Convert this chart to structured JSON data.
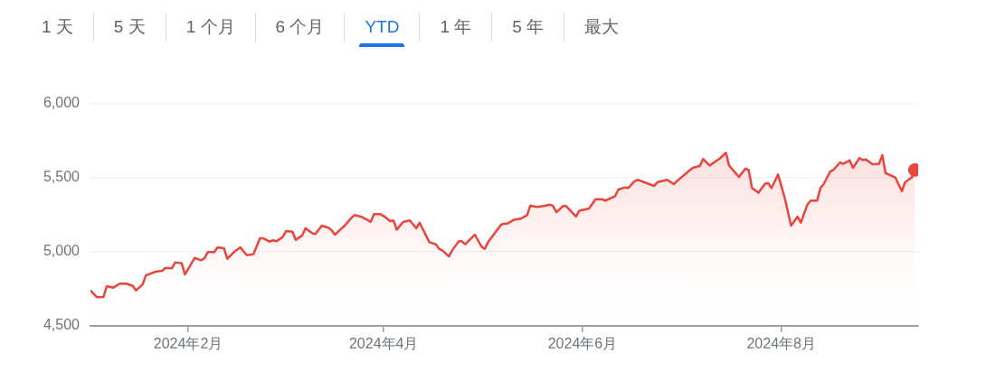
{
  "chart_data": {
    "type": "area",
    "annotations": [
      "1 天",
      "5 天",
      "1 个月",
      "6 个月",
      "YTD",
      "1 年",
      "5 年",
      "最大"
    ],
    "xlim": [
      "2024-01-02",
      "2024-09-12"
    ],
    "xticks": [
      {
        "value": "2024-02-01",
        "label": "2024年2月"
      },
      {
        "value": "2024-04-01",
        "label": "2024年4月"
      },
      {
        "value": "2024-06-01",
        "label": "2024年6月"
      },
      {
        "value": "2024-08-01",
        "label": "2024年8月"
      }
    ],
    "ylim": [
      4500,
      6000
    ],
    "yticks": [
      {
        "value": 4500,
        "label": "4,500"
      },
      {
        "value": 5000,
        "label": "5,000"
      },
      {
        "value": 5500,
        "label": "5,500"
      },
      {
        "value": 6000,
        "label": "6,000"
      }
    ],
    "grid": "y",
    "series": [
      {
        "type": "area",
        "color": "#e8453c",
        "x": [
          "2024-01-02",
          "2024-01-04",
          "2024-01-06",
          "2024-01-07",
          "2024-01-09",
          "2024-01-11",
          "2024-01-13",
          "2024-01-15",
          "2024-01-16",
          "2024-01-18",
          "2024-01-19",
          "2024-01-22",
          "2024-01-24",
          "2024-01-25",
          "2024-01-27",
          "2024-01-28",
          "2024-01-30",
          "2024-01-31",
          "2024-02-03",
          "2024-02-05",
          "2024-02-06",
          "2024-02-07",
          "2024-02-09",
          "2024-02-10",
          "2024-02-12",
          "2024-02-13",
          "2024-02-15",
          "2024-02-17",
          "2024-02-19",
          "2024-02-21",
          "2024-02-23",
          "2024-02-24",
          "2024-02-26",
          "2024-02-27",
          "2024-02-28",
          "2024-03-01",
          "2024-03-02",
          "2024-03-04",
          "2024-03-05",
          "2024-03-07",
          "2024-03-08",
          "2024-03-10",
          "2024-03-11",
          "2024-03-13",
          "2024-03-15",
          "2024-03-16",
          "2024-03-17",
          "2024-03-20",
          "2024-03-22",
          "2024-03-23",
          "2024-03-25",
          "2024-03-28",
          "2024-03-29",
          "2024-03-31",
          "2024-04-01",
          "2024-04-03",
          "2024-04-04",
          "2024-04-05",
          "2024-04-07",
          "2024-04-09",
          "2024-04-11",
          "2024-04-12",
          "2024-04-15",
          "2024-04-17",
          "2024-04-18",
          "2024-04-19",
          "2024-04-21",
          "2024-04-22",
          "2024-04-24",
          "2024-04-25",
          "2024-04-26",
          "2024-04-28",
          "2024-04-29",
          "2024-05-01",
          "2024-05-02",
          "2024-05-03",
          "2024-05-07",
          "2024-05-08",
          "2024-05-09",
          "2024-05-11",
          "2024-05-13",
          "2024-05-15",
          "2024-05-16",
          "2024-05-18",
          "2024-05-20",
          "2024-05-22",
          "2024-05-23",
          "2024-05-24",
          "2024-05-26",
          "2024-05-27",
          "2024-05-30",
          "2024-05-31",
          "2024-06-03",
          "2024-06-05",
          "2024-06-07",
          "2024-06-08",
          "2024-06-11",
          "2024-06-12",
          "2024-06-14",
          "2024-06-15",
          "2024-06-17",
          "2024-06-18",
          "2024-06-23",
          "2024-06-24",
          "2024-06-27",
          "2024-06-29",
          "2024-06-30",
          "2024-07-04",
          "2024-07-05",
          "2024-07-07",
          "2024-07-08",
          "2024-07-10",
          "2024-07-12",
          "2024-07-13",
          "2024-07-15",
          "2024-07-16",
          "2024-07-19",
          "2024-07-21",
          "2024-07-22",
          "2024-07-23",
          "2024-07-25",
          "2024-07-27",
          "2024-07-28",
          "2024-07-29",
          "2024-07-31",
          "2024-08-02",
          "2024-08-04",
          "2024-08-06",
          "2024-08-07",
          "2024-08-09",
          "2024-08-10",
          "2024-08-12",
          "2024-08-13",
          "2024-08-14",
          "2024-08-16",
          "2024-08-17",
          "2024-08-19",
          "2024-08-20",
          "2024-08-22",
          "2024-08-23",
          "2024-08-25",
          "2024-08-26",
          "2024-08-27",
          "2024-08-29",
          "2024-08-31",
          "2024-09-01",
          "2024-09-02",
          "2024-09-05",
          "2024-09-07",
          "2024-09-08",
          "2024-09-10",
          "2024-09-11"
        ],
        "values": [
          4740,
          4693,
          4695,
          4768,
          4758,
          4785,
          4785,
          4770,
          4740,
          4780,
          4841,
          4866,
          4872,
          4892,
          4888,
          4929,
          4923,
          4847,
          4959,
          4943,
          4957,
          4998,
          4998,
          5030,
          5024,
          4953,
          4998,
          5030,
          4977,
          4984,
          5091,
          5091,
          5069,
          5079,
          5071,
          5100,
          5140,
          5136,
          5081,
          5112,
          5160,
          5126,
          5120,
          5177,
          5163,
          5146,
          5116,
          5177,
          5228,
          5248,
          5238,
          5203,
          5254,
          5254,
          5242,
          5207,
          5212,
          5150,
          5203,
          5212,
          5160,
          5197,
          5065,
          5051,
          5020,
          5010,
          4969,
          5010,
          5071,
          5071,
          5051,
          5096,
          5116,
          5035,
          5020,
          5065,
          5183,
          5191,
          5191,
          5217,
          5224,
          5248,
          5313,
          5303,
          5309,
          5319,
          5309,
          5268,
          5309,
          5309,
          5238,
          5278,
          5293,
          5355,
          5355,
          5346,
          5376,
          5421,
          5435,
          5431,
          5478,
          5486,
          5445,
          5471,
          5486,
          5457,
          5478,
          5553,
          5569,
          5579,
          5628,
          5583,
          5614,
          5628,
          5669,
          5583,
          5506,
          5563,
          5553,
          5431,
          5400,
          5461,
          5465,
          5431,
          5522,
          5370,
          5177,
          5238,
          5197,
          5319,
          5346,
          5346,
          5431,
          5457,
          5543,
          5553,
          5604,
          5594,
          5618,
          5567,
          5634,
          5620,
          5624,
          5591,
          5594,
          5654,
          5532,
          5502,
          5410,
          5471,
          5502,
          5553
        ]
      },
      {
        "type": "scatter",
        "color": "#e8453c",
        "marker": "circle",
        "x": [
          "2024-09-11"
        ],
        "values": [
          5553
        ]
      }
    ]
  }
}
